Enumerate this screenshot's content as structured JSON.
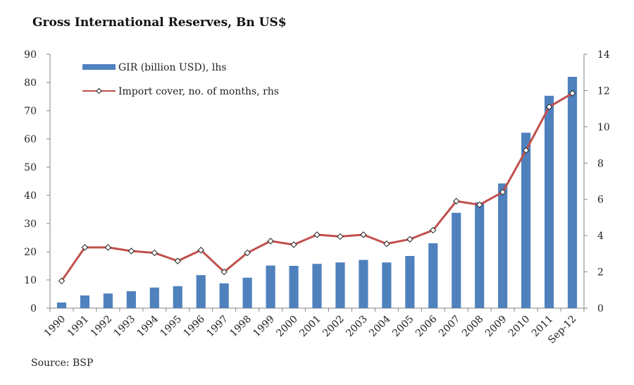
{
  "chart_data": {
    "type": "bar",
    "title": "Gross International Reserves, Bn US$",
    "source": "Source: BSP",
    "categories": [
      "1990",
      "1991",
      "1992",
      "1993",
      "1994",
      "1995",
      "1996",
      "1997",
      "1998",
      "1999",
      "2000",
      "2001",
      "2002",
      "2003",
      "2004",
      "2005",
      "2006",
      "2007",
      "2008",
      "2009",
      "2010",
      "2011",
      "Sep-12"
    ],
    "series": [
      {
        "name": "GIR (billion USD), lhs",
        "type": "bar",
        "axis": "left",
        "color": "#4F81BD",
        "values": [
          2.0,
          4.5,
          5.2,
          6.0,
          7.3,
          7.8,
          11.7,
          8.8,
          10.8,
          15.1,
          15.0,
          15.7,
          16.2,
          17.1,
          16.2,
          18.5,
          23.0,
          33.8,
          37.5,
          44.2,
          62.2,
          75.3,
          82.0
        ]
      },
      {
        "name": "Import cover, no. of months, rhs",
        "type": "line",
        "axis": "right",
        "color": "#C0504D",
        "values": [
          1.5,
          3.35,
          3.35,
          3.15,
          3.05,
          2.6,
          3.2,
          2.0,
          3.05,
          3.7,
          3.5,
          4.05,
          3.95,
          4.05,
          3.55,
          3.8,
          4.3,
          5.9,
          5.7,
          6.4,
          8.7,
          11.1,
          11.85
        ]
      }
    ],
    "yaxis_left": {
      "min": 0,
      "max": 90,
      "ticks": [
        "0",
        "10",
        "20",
        "30",
        "40",
        "50",
        "60",
        "70",
        "80",
        "90"
      ]
    },
    "yaxis_right": {
      "min": 0,
      "max": 14,
      "ticks": [
        "0",
        "2",
        "4",
        "6",
        "8",
        "10",
        "12",
        "14"
      ]
    },
    "grid": false,
    "legend": "top-left"
  }
}
